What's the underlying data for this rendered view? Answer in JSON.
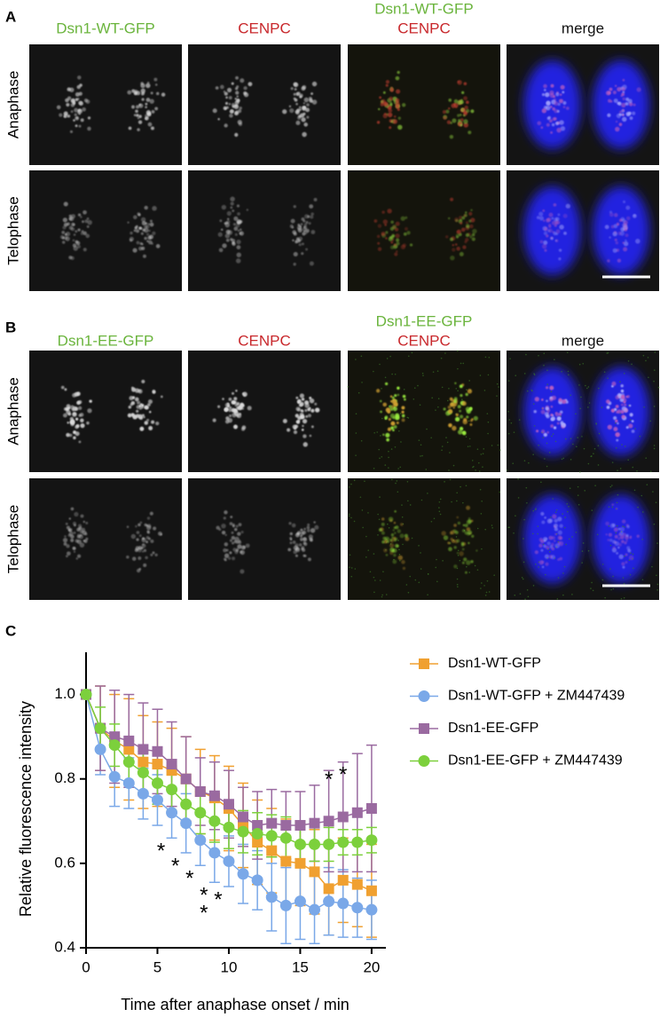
{
  "figure": {
    "panel_a": {
      "label": "A",
      "columns": [
        [
          "Dsn1-WT-GFP"
        ],
        [
          "CENPC"
        ],
        [
          "Dsn1-WT-GFP",
          "CENPC"
        ],
        [
          "merge"
        ]
      ],
      "rows": [
        "Anaphase",
        "Telophase"
      ]
    },
    "panel_b": {
      "label": "B",
      "columns": [
        [
          "Dsn1-EE-GFP"
        ],
        [
          "CENPC"
        ],
        [
          "Dsn1-EE-GFP",
          "CENPC"
        ],
        [
          "merge"
        ]
      ],
      "rows": [
        "Anaphase",
        "Telophase"
      ]
    },
    "panel_c": {
      "label": "C"
    }
  },
  "chart_data": {
    "type": "line",
    "x_label": "Time after anaphase onset / min",
    "y_label": "Relative fluorescence intensity",
    "x": [
      0,
      1,
      2,
      3,
      4,
      5,
      6,
      7,
      8,
      9,
      10,
      11,
      12,
      13,
      14,
      15,
      16,
      17,
      18,
      19,
      20
    ],
    "xlim": [
      0,
      21
    ],
    "xticks": [
      0,
      5,
      10,
      15,
      20
    ],
    "ylim": [
      0.4,
      1.1
    ],
    "yticks": [
      {
        "value": 0.4,
        "label": "0.4"
      },
      {
        "value": 0.6,
        "label": "0.6"
      },
      {
        "value": 0.8,
        "label": "0.8"
      },
      {
        "value": 1.0,
        "label": "1.0"
      }
    ],
    "series": [
      {
        "name": "Dsn1-WT-GFP",
        "color": "#f0a030",
        "marker": "square",
        "values": [
          1.0,
          0.92,
          0.89,
          0.87,
          0.84,
          0.835,
          0.82,
          0.8,
          0.77,
          0.755,
          0.73,
          0.69,
          0.65,
          0.63,
          0.605,
          0.6,
          0.58,
          0.54,
          0.56,
          0.55,
          0.535
        ],
        "errors": [
          0.0,
          0.1,
          0.11,
          0.12,
          0.11,
          0.1,
          0.1,
          0.1,
          0.1,
          0.1,
          0.1,
          0.1,
          0.1,
          0.1,
          0.1,
          0.1,
          0.1,
          0.11,
          0.1,
          0.1,
          0.11
        ]
      },
      {
        "name": "Dsn1-WT-GFP + ZM447439",
        "color": "#7aa8e8",
        "marker": "circle",
        "values": [
          1.0,
          0.87,
          0.805,
          0.79,
          0.765,
          0.75,
          0.72,
          0.695,
          0.655,
          0.625,
          0.605,
          0.575,
          0.56,
          0.52,
          0.5,
          0.51,
          0.49,
          0.51,
          0.505,
          0.495,
          0.49
        ],
        "errors": [
          0.0,
          0.06,
          0.07,
          0.06,
          0.06,
          0.06,
          0.06,
          0.07,
          0.06,
          0.07,
          0.06,
          0.07,
          0.07,
          0.08,
          0.09,
          0.09,
          0.08,
          0.08,
          0.08,
          0.07,
          0.07
        ]
      },
      {
        "name": "Dsn1-EE-GFP",
        "color": "#9a6aa0",
        "marker": "square",
        "values": [
          1.0,
          0.92,
          0.9,
          0.89,
          0.87,
          0.865,
          0.835,
          0.8,
          0.77,
          0.76,
          0.74,
          0.71,
          0.69,
          0.695,
          0.69,
          0.69,
          0.695,
          0.7,
          0.71,
          0.72,
          0.73
        ],
        "errors": [
          0.0,
          0.1,
          0.11,
          0.11,
          0.11,
          0.1,
          0.1,
          0.1,
          0.08,
          0.08,
          0.08,
          0.07,
          0.08,
          0.08,
          0.08,
          0.08,
          0.09,
          0.12,
          0.13,
          0.14,
          0.15
        ]
      },
      {
        "name": "Dsn1-EE-GFP + ZM447439",
        "color": "#7cd03c",
        "marker": "circle",
        "values": [
          1.0,
          0.92,
          0.88,
          0.84,
          0.815,
          0.79,
          0.775,
          0.74,
          0.72,
          0.7,
          0.685,
          0.675,
          0.67,
          0.665,
          0.66,
          0.645,
          0.645,
          0.645,
          0.65,
          0.65,
          0.655
        ],
        "errors": [
          0.0,
          0.05,
          0.05,
          0.05,
          0.05,
          0.05,
          0.05,
          0.05,
          0.05,
          0.05,
          0.05,
          0.05,
          0.05,
          0.05,
          0.05,
          0.05,
          0.04,
          0.04,
          0.03,
          0.03,
          0.03
        ]
      }
    ],
    "annotations": [
      {
        "text": "*",
        "x": 6
      },
      {
        "text": "*",
        "x": 7
      },
      {
        "text": "*",
        "x": 8
      },
      {
        "text": "*",
        "x": 9
      },
      {
        "text": "*",
        "x": 9
      },
      {
        "text": "*",
        "x": 10
      },
      {
        "text": "*",
        "x": 17
      },
      {
        "text": "*",
        "x": 18
      }
    ]
  }
}
